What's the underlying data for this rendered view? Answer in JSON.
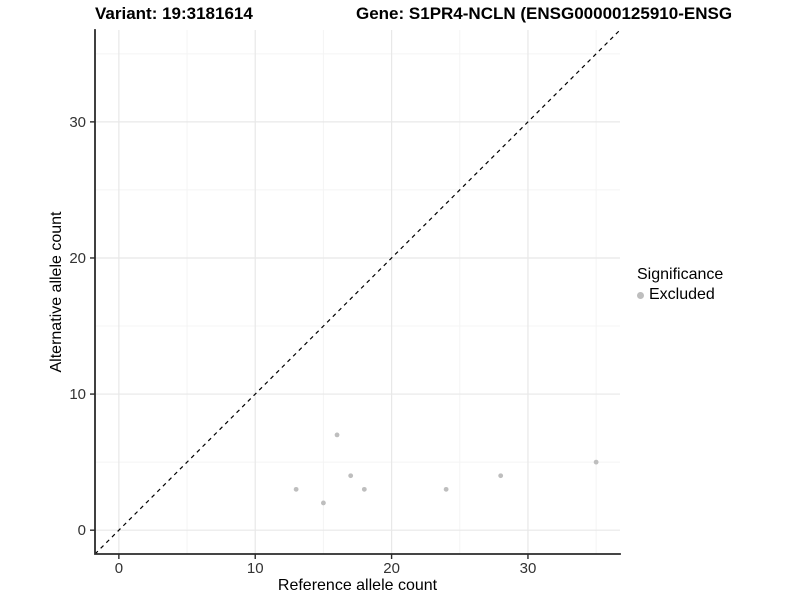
{
  "chart_data": {
    "type": "scatter",
    "titles": {
      "left": "Variant: 19:3181614",
      "right": "Gene: S1PR4-NCLN (ENSG00000125910-ENSG"
    },
    "xlabel": "Reference allele count",
    "ylabel": "Alternative allele count",
    "xlim": [
      -1.75,
      36.75
    ],
    "ylim": [
      -1.75,
      36.75
    ],
    "x_major_ticks": [
      0,
      10,
      20,
      30
    ],
    "y_major_ticks": [
      0,
      10,
      20,
      30
    ],
    "x_minor_gridlines": [
      5,
      15,
      25,
      35
    ],
    "y_minor_gridlines": [
      5,
      15,
      25,
      35
    ],
    "grid": "major+minor",
    "identity_line": {
      "equation": "y = x",
      "style": "dashed",
      "color": "#000000"
    },
    "legend": {
      "title": "Significance",
      "position": "right"
    },
    "series": [
      {
        "name": "Excluded",
        "color": "#BEBEBE",
        "marker": "circle",
        "points": [
          {
            "x": 13,
            "y": 3
          },
          {
            "x": 15,
            "y": 2
          },
          {
            "x": 16,
            "y": 7
          },
          {
            "x": 17,
            "y": 4
          },
          {
            "x": 18,
            "y": 3
          },
          {
            "x": 24,
            "y": 3
          },
          {
            "x": 28,
            "y": 4
          },
          {
            "x": 35,
            "y": 5
          }
        ]
      }
    ],
    "colors": {
      "background": "#FFFFFF",
      "grid_major": "#E8E8E8",
      "grid_minor": "#F4F4F4",
      "axis_line": "#2B2B2B",
      "tick_text": "#333333",
      "title_text": "#000000"
    }
  }
}
